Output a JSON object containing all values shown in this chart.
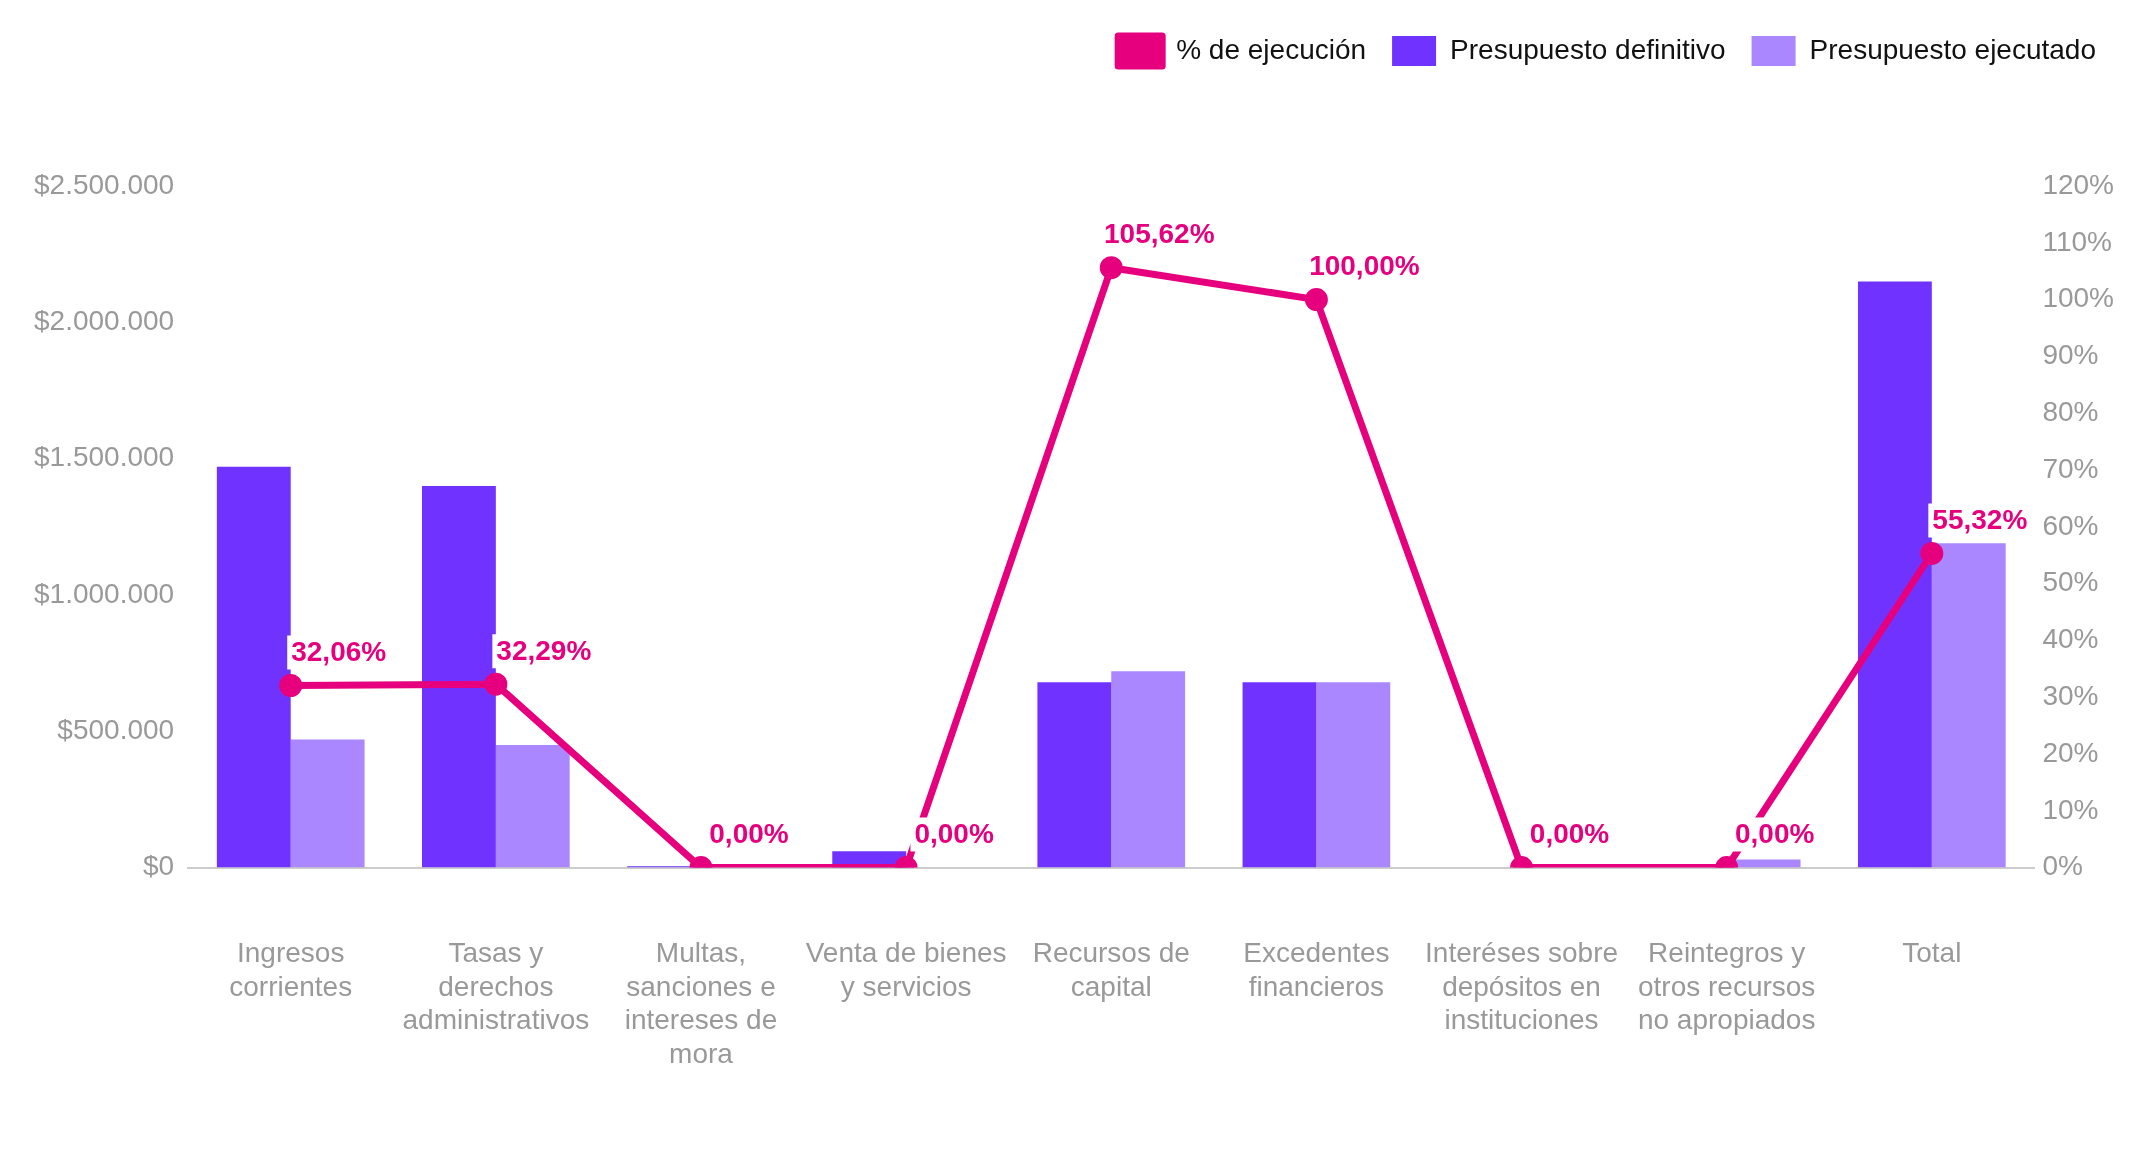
{
  "chart_data": {
    "type": "bar",
    "categories": [
      "Ingresos corrientes",
      "Tasas y derechos administrativos",
      "Multas, sanciones e intereses de mora",
      "Venta de bienes y servicios",
      "Recursos de capital",
      "Excedentes financieros",
      "Interéses sobre depósitos en instituciones",
      "Reintegros y otros recursos no apropiados",
      "Total"
    ],
    "series": [
      {
        "name": "Presupuesto definitivo",
        "color": "#7033ff",
        "values": [
          1470000,
          1400000,
          5000,
          60000,
          680000,
          680000,
          0,
          0,
          2150000
        ]
      },
      {
        "name": "Presupuesto ejecutado",
        "color": "#ab87ff",
        "values": [
          470000,
          450000,
          0,
          0,
          720000,
          680000,
          0,
          30000,
          1190000
        ]
      },
      {
        "name": "% de ejecución",
        "type": "line",
        "axis": "y2",
        "color": "#e6007e",
        "marker": "circle",
        "values": [
          32.06,
          32.29,
          0,
          0,
          105.62,
          100,
          0,
          0,
          55.32
        ],
        "value_labels": [
          "32,06%",
          "32,29%",
          "0,00%",
          "0,00%",
          "105,62%",
          "100,00%",
          "0,00%",
          "0,00%",
          "55,32%"
        ]
      }
    ],
    "ylim": [
      0,
      2500000
    ],
    "yticks": [
      {
        "value": 0,
        "label": "$0"
      },
      {
        "value": 500000,
        "label": "$500.000"
      },
      {
        "value": 1000000,
        "label": "$1.000.000"
      },
      {
        "value": 1500000,
        "label": "$1.500.000"
      },
      {
        "value": 2000000,
        "label": "$2.000.000"
      },
      {
        "value": 2500000,
        "label": "$2.500.000"
      }
    ],
    "y2lim": [
      0,
      120
    ],
    "y2ticks": [
      {
        "value": 0,
        "label": "0%"
      },
      {
        "value": 10,
        "label": "10%"
      },
      {
        "value": 20,
        "label": "20%"
      },
      {
        "value": 30,
        "label": "30%"
      },
      {
        "value": 40,
        "label": "40%"
      },
      {
        "value": 50,
        "label": "50%"
      },
      {
        "value": 60,
        "label": "60%"
      },
      {
        "value": 70,
        "label": "70%"
      },
      {
        "value": 80,
        "label": "80%"
      },
      {
        "value": 90,
        "label": "90%"
      },
      {
        "value": 100,
        "label": "100%"
      },
      {
        "value": 110,
        "label": "110%"
      },
      {
        "value": 120,
        "label": "120%"
      }
    ],
    "grid": false,
    "legend": "top right"
  }
}
